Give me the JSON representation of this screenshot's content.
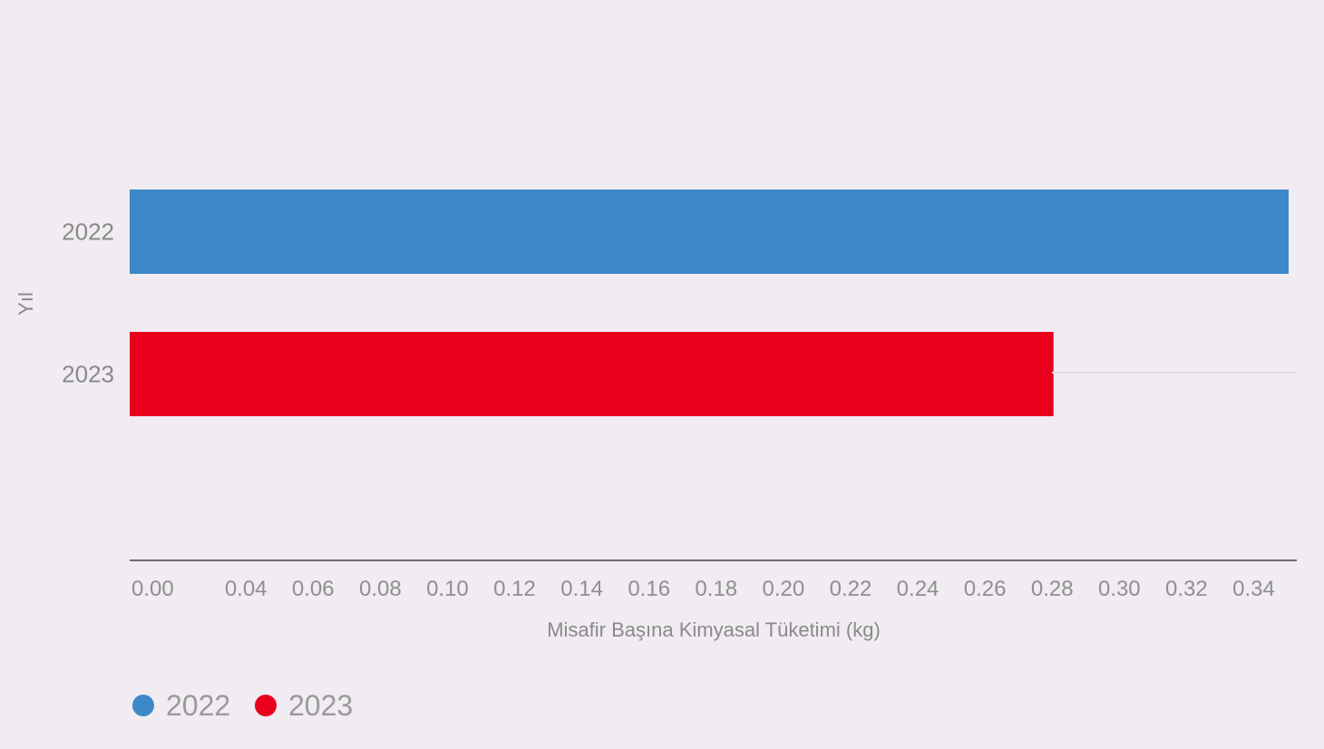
{
  "chart_data": {
    "type": "bar",
    "orientation": "horizontal",
    "categories": [
      "2022",
      "2023"
    ],
    "values": [
      0.345,
      0.275
    ],
    "colors": [
      "#3d88c9",
      "#e8001c"
    ],
    "xlabel": "Misafir Başına Kimyasal Tüketimi (kg)",
    "ylabel": "Yıl",
    "xlim": [
      0,
      0.345
    ],
    "xticks": [
      "0.00",
      "0.04",
      "0.06",
      "0.08",
      "0.10",
      "0.12",
      "0.14",
      "0.16",
      "0.18",
      "0.20",
      "0.22",
      "0.24",
      "0.26",
      "0.28",
      "0.30",
      "0.32",
      "0.34"
    ],
    "grid": false,
    "legend": {
      "placement": "bottom-left",
      "entries": [
        {
          "label": "2022",
          "color": "#3d88c9"
        },
        {
          "label": "2023",
          "color": "#e8001c"
        }
      ]
    }
  }
}
